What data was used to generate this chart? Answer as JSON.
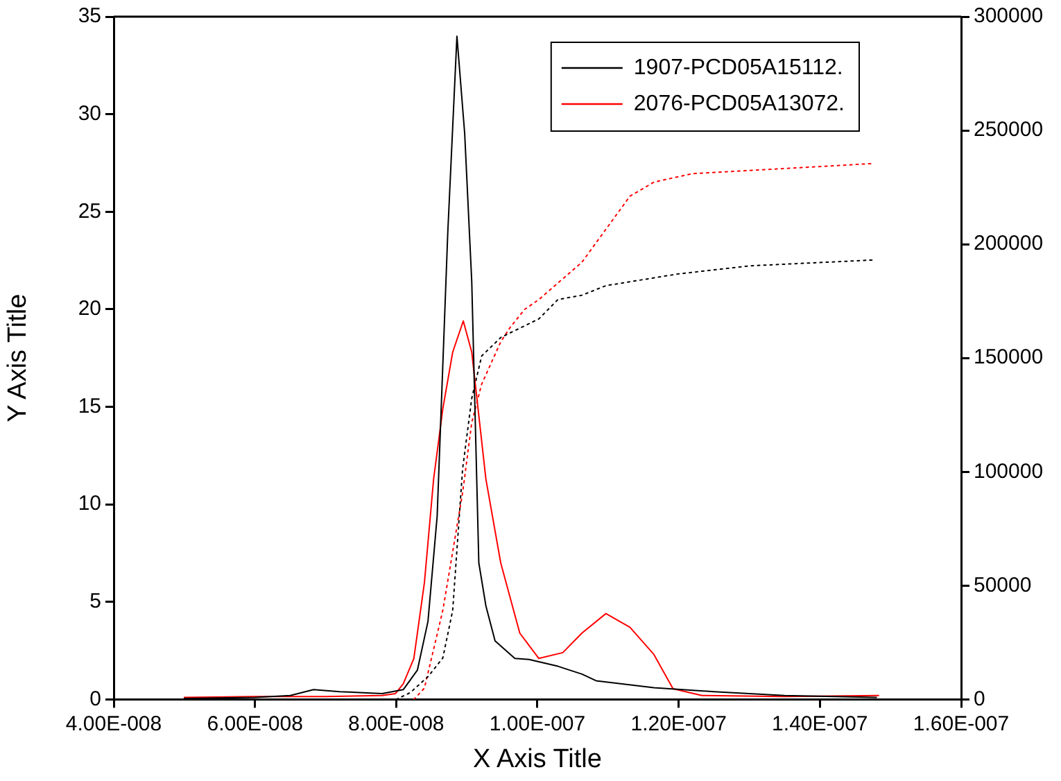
{
  "chart_data": {
    "type": "line",
    "xlabel": "X Axis Title",
    "ylabel": "Y Axis Title",
    "xlim": [
      4e-08,
      1.6e-07
    ],
    "xticks": [
      {
        "value": 4e-08,
        "label": "4.00E-008"
      },
      {
        "value": 6e-08,
        "label": "6.00E-008"
      },
      {
        "value": 8e-08,
        "label": "8.00E-008"
      },
      {
        "value": 1e-07,
        "label": "1.00E-007"
      },
      {
        "value": 1.2e-07,
        "label": "1.20E-007"
      },
      {
        "value": 1.4e-07,
        "label": "1.40E-007"
      },
      {
        "value": 1.6e-07,
        "label": "1.60E-007"
      }
    ],
    "ylim": [
      0,
      35
    ],
    "yticks": [
      0,
      5,
      10,
      15,
      20,
      25,
      30,
      35
    ],
    "y2lim": [
      0,
      300000
    ],
    "y2ticks": [
      0,
      50000,
      100000,
      150000,
      200000,
      250000,
      300000
    ],
    "grid": false,
    "legend": "top right",
    "marker": "none",
    "series": [
      {
        "name": "1907-PCD05A15112.",
        "color": "#000000",
        "line_style": "solid",
        "x": [
          5e-08,
          6e-08,
          6.5e-08,
          6.83e-08,
          7.2e-08,
          7.8e-08,
          8.1e-08,
          8.3e-08,
          8.45e-08,
          8.58e-08,
          8.73e-08,
          8.86e-08,
          8.97e-08,
          9.07e-08,
          9.17e-08,
          9.27e-08,
          9.4e-08,
          9.68e-08,
          9.88e-08,
          1.029e-07,
          1.063e-07,
          1.083e-07,
          1.165e-07,
          1.25e-07,
          1.35e-07,
          1.48e-07
        ],
        "values": [
          0.05,
          0.1,
          0.2,
          0.5,
          0.4,
          0.3,
          0.5,
          1.5,
          4,
          9.4,
          23.9,
          34,
          29,
          21.4,
          7,
          4.8,
          3,
          2.1,
          2.05,
          1.7,
          1.3,
          0.96,
          0.6,
          0.4,
          0.2,
          0.1
        ]
      },
      {
        "name": "2076-PCD05A13072.",
        "color": "#ff0000",
        "line_style": "solid",
        "x": [
          5e-08,
          6e-08,
          7e-08,
          7.8e-08,
          7.99e-08,
          8.1e-08,
          8.25e-08,
          8.4e-08,
          8.53e-08,
          8.66e-08,
          8.8e-08,
          8.95e-08,
          9.07e-08,
          9.27e-08,
          9.48e-08,
          9.75e-08,
          1.002e-07,
          1.036e-07,
          1.063e-07,
          1.097e-07,
          1.131e-07,
          1.165e-07,
          1.192e-07,
          1.233e-07,
          1.35e-07,
          1.483e-07
        ],
        "values": [
          0.1,
          0.15,
          0.15,
          0.2,
          0.3,
          0.8,
          2.1,
          6,
          11.3,
          14.9,
          17.8,
          19.4,
          17.8,
          11.3,
          7,
          3.4,
          2.1,
          2.4,
          3.4,
          4.4,
          3.7,
          2.3,
          0.55,
          0.2,
          0.15,
          0.2
        ]
      },
      {
        "color": "#000000",
        "line_style": "dotted",
        "axis": "y2",
        "x": [
          8e-08,
          8.2e-08,
          8.45e-08,
          8.66e-08,
          8.8e-08,
          8.94e-08,
          9.07e-08,
          9.21e-08,
          9.48e-08,
          9.61e-08,
          1.002e-07,
          1.029e-07,
          1.063e-07,
          1.097e-07,
          1.198e-07,
          1.3e-07,
          1.477e-07
        ],
        "values": [
          0,
          3000,
          10000,
          18200,
          39100,
          101200,
          132300,
          150900,
          159000,
          161000,
          167200,
          175700,
          177600,
          181800,
          186900,
          190500,
          193100
        ]
      },
      {
        "color": "#ff0000",
        "line_style": "dotted",
        "axis": "y2",
        "x": [
          8.25e-08,
          8.4e-08,
          8.66e-08,
          8.94e-08,
          9.07e-08,
          9.21e-08,
          9.48e-08,
          9.61e-08,
          9.82e-08,
          1.002e-07,
          1.063e-07,
          1.097e-07,
          1.131e-07,
          1.165e-07,
          1.219e-07,
          1.3e-07,
          1.477e-07
        ],
        "values": [
          0,
          5000,
          39100,
          90700,
          121700,
          138500,
          157100,
          163300,
          171400,
          175700,
          192100,
          206600,
          221100,
          227300,
          231000,
          232400,
          235500
        ]
      }
    ]
  }
}
